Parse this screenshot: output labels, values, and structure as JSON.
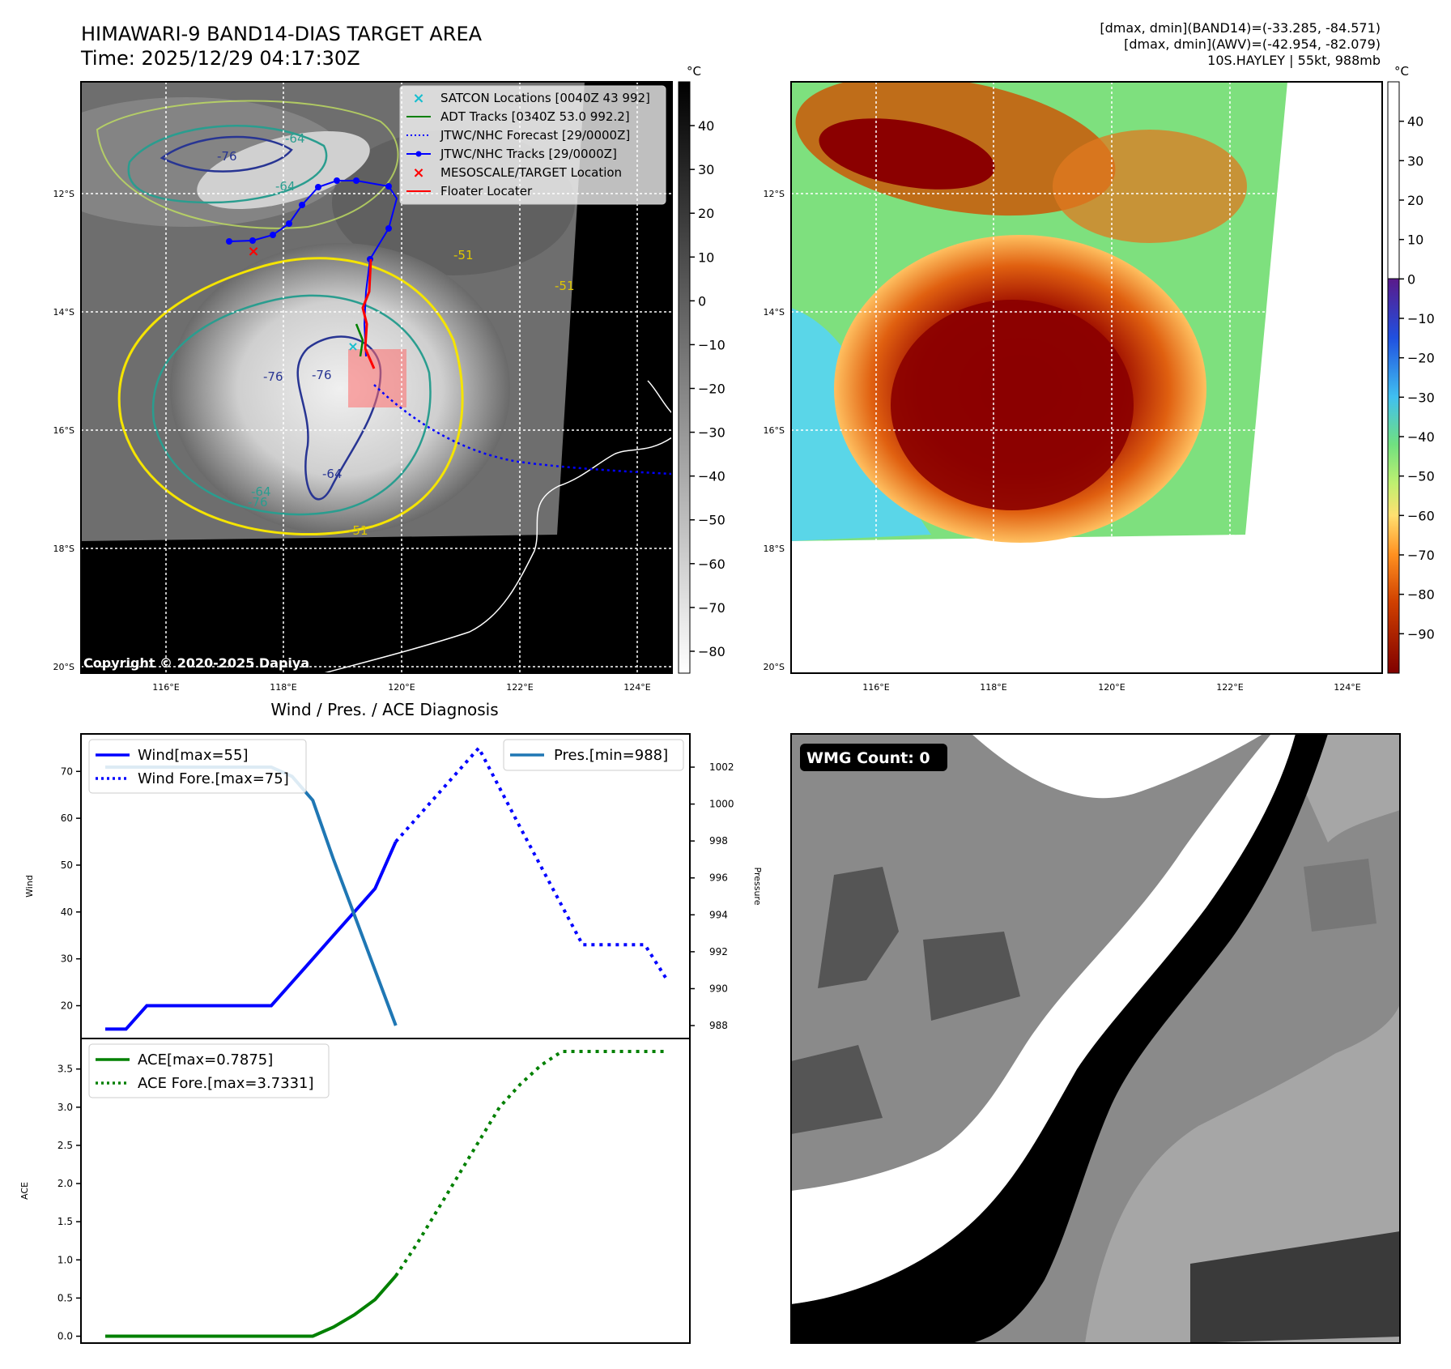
{
  "header": {
    "title": "HIMAWARI-9 BAND14-DIAS TARGET AREA",
    "time": "Time: 2025/12/29 04:17:30Z",
    "stats_band14": "[dmax, dmin](BAND14)=(-33.285, -84.571)",
    "stats_awv": "[dmax, dmin](AWV)=(-42.954, -82.079)",
    "storm": "10S.HAYLEY | 55kt, 988mb"
  },
  "map": {
    "lat_labels": [
      "12°S",
      "14°S",
      "16°S",
      "18°S",
      "20°S"
    ],
    "lon_labels": [
      "116°E",
      "118°E",
      "120°E",
      "122°E",
      "124°E"
    ],
    "copyright": "Copyright © 2020-2025 Dapiya",
    "contour_labels": [
      "-64",
      "-76",
      "-64",
      "-76",
      "-76",
      "-64",
      "-76",
      "-51",
      "-51",
      "-51",
      "-64"
    ],
    "legend": [
      {
        "label": "SATCON Locations [0040Z 43 992]",
        "color": "#17becf",
        "marker": "x"
      },
      {
        "label": "ADT Tracks [0340Z 53.0 992.2]",
        "color": "#008000",
        "marker": "line"
      },
      {
        "label": "JTWC/NHC Forecast [29/0000Z]",
        "color": "#0000ff",
        "marker": "dotted"
      },
      {
        "label": "JTWC/NHC Tracks [29/0000Z]",
        "color": "#0000ff",
        "marker": "line-dot"
      },
      {
        "label": "MESOSCALE/TARGET Location",
        "color": "#ff0000",
        "marker": "x"
      },
      {
        "label": "Floater Locater",
        "color": "#ff0000",
        "marker": "line"
      }
    ]
  },
  "colorbar_left": {
    "unit": "°C",
    "ticks": [
      "40",
      "30",
      "20",
      "10",
      "0",
      "−10",
      "−20",
      "−30",
      "−40",
      "−50",
      "−60",
      "−70",
      "−80"
    ]
  },
  "colorbar_right": {
    "unit": "°C",
    "ticks": [
      "40",
      "30",
      "20",
      "10",
      "0",
      "−10",
      "−20",
      "−30",
      "−40",
      "−50",
      "−60",
      "−70",
      "−80",
      "−90"
    ]
  },
  "wmg": {
    "label": "WMG Count: 0"
  },
  "chart_data": [
    {
      "type": "line",
      "title": "Wind / Pres. / ACE Diagnosis",
      "ylabel": "Wind",
      "ylabel2": "Pressure",
      "ylim": [
        13,
        78
      ],
      "ylim2": [
        987.3,
        1003.8
      ],
      "x": [
        0,
        1,
        2,
        3,
        4,
        5,
        6,
        7,
        8,
        9,
        10,
        11,
        12,
        13,
        14,
        15,
        16,
        17,
        18,
        19,
        20,
        21,
        22,
        23,
        24,
        25,
        26,
        27
      ],
      "yticks": [
        "70",
        "60",
        "50",
        "40",
        "30",
        "20"
      ],
      "y2ticks": [
        "1002",
        "1000",
        "998",
        "996",
        "994",
        "992",
        "990",
        "988"
      ],
      "series": [
        {
          "name": "Wind[max=55]",
          "color": "#0000ff",
          "style": "solid",
          "x": [
            0,
            1,
            2,
            3,
            4,
            5,
            6,
            7,
            8,
            9,
            10,
            11,
            12,
            13,
            14
          ],
          "values": [
            15,
            15,
            20,
            20,
            20,
            20,
            20,
            20,
            20,
            25,
            30,
            35,
            40,
            45,
            55
          ]
        },
        {
          "name": "Wind Fore.[max=75]",
          "color": "#0000ff",
          "style": "dotted",
          "x": [
            14,
            18,
            20,
            23,
            24,
            25,
            26,
            27
          ],
          "values": [
            55,
            75,
            58,
            33,
            33,
            33,
            33,
            26
          ]
        },
        {
          "name": "Pres.[min=988]",
          "color": "#1f77b4",
          "style": "solid",
          "x": [
            0,
            1,
            2,
            3,
            4,
            5,
            6,
            7,
            8,
            9,
            10,
            11,
            12,
            13,
            14
          ],
          "values": [
            1002,
            1002,
            1002,
            1002,
            1002,
            1002,
            1002,
            1002,
            1002,
            1001.5,
            1000.2,
            997,
            994,
            991,
            988
          ]
        }
      ]
    },
    {
      "type": "line",
      "ylabel": "ACE",
      "ylim": [
        -0.09,
        3.9
      ],
      "x": [
        0,
        1,
        2,
        3,
        4,
        5,
        6,
        7,
        8,
        9,
        10,
        11,
        12,
        13,
        14,
        15,
        16,
        17,
        18,
        19,
        20,
        21,
        22,
        23,
        24,
        25,
        26,
        27
      ],
      "yticks": [
        "3.5",
        "3.0",
        "2.5",
        "2.0",
        "1.5",
        "1.0",
        "0.5",
        "0.0"
      ],
      "series": [
        {
          "name": "ACE[max=0.7875]",
          "color": "#008000",
          "style": "solid",
          "x": [
            0,
            1,
            2,
            3,
            4,
            5,
            6,
            7,
            8,
            9,
            10,
            11,
            12,
            13,
            14
          ],
          "values": [
            0,
            0,
            0,
            0,
            0,
            0,
            0,
            0,
            0,
            0,
            0,
            0.12,
            0.28,
            0.48,
            0.79
          ]
        },
        {
          "name": "ACE Fore.[max=3.7331]",
          "color": "#008000",
          "style": "dotted",
          "x": [
            14,
            15,
            16,
            17,
            18,
            19,
            20,
            21,
            22,
            23,
            24,
            25,
            26,
            27
          ],
          "values": [
            0.79,
            1.2,
            1.65,
            2.1,
            2.55,
            3.0,
            3.3,
            3.55,
            3.73,
            3.73,
            3.73,
            3.73,
            3.73,
            3.73
          ]
        }
      ]
    }
  ]
}
